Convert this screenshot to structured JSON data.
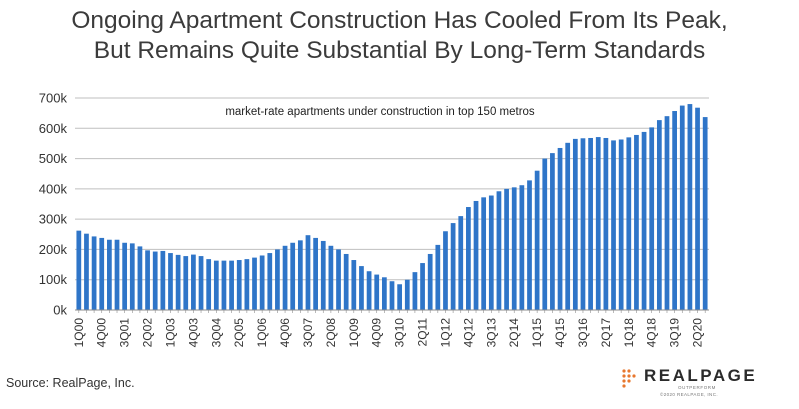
{
  "title": {
    "line1": "Ongoing Apartment Construction Has Cooled From Its Peak,",
    "line2": "But Remains Quite Substantial By Long-Term Standards"
  },
  "source": "Source: RealPage, Inc.",
  "logo": {
    "name": "REALPAGE",
    "tagline": "OUTPERFORM",
    "copyright": "©2020 REALPAGE, INC."
  },
  "colors": {
    "bar": "#2f75c8",
    "grid": "#bfbfbf",
    "text": "#333333"
  },
  "chart_data": {
    "type": "bar",
    "annotation": "market-rate apartments under construction in top 150 metros",
    "ylim": [
      0,
      700000
    ],
    "yticks": [
      {
        "value": 0,
        "label": "0k"
      },
      {
        "value": 100000,
        "label": "100k"
      },
      {
        "value": 200000,
        "label": "200k"
      },
      {
        "value": 300000,
        "label": "300k"
      },
      {
        "value": 400000,
        "label": "400k"
      },
      {
        "value": 500000,
        "label": "500k"
      },
      {
        "value": 600000,
        "label": "600k"
      },
      {
        "value": 700000,
        "label": "700k"
      }
    ],
    "grid": "horizontal",
    "categories": [
      "1Q00",
      "2Q00",
      "3Q00",
      "4Q00",
      "1Q01",
      "2Q01",
      "3Q01",
      "4Q01",
      "1Q02",
      "2Q02",
      "3Q02",
      "4Q02",
      "1Q03",
      "2Q03",
      "3Q03",
      "4Q03",
      "1Q04",
      "2Q04",
      "3Q04",
      "4Q04",
      "1Q05",
      "2Q05",
      "3Q05",
      "4Q05",
      "1Q06",
      "2Q06",
      "3Q06",
      "4Q06",
      "1Q07",
      "2Q07",
      "3Q07",
      "4Q07",
      "1Q08",
      "2Q08",
      "3Q08",
      "4Q08",
      "1Q09",
      "2Q09",
      "3Q09",
      "4Q09",
      "1Q10",
      "2Q10",
      "3Q10",
      "4Q10",
      "1Q11",
      "2Q11",
      "3Q11",
      "4Q11",
      "1Q12",
      "2Q12",
      "3Q12",
      "4Q12",
      "1Q13",
      "2Q13",
      "3Q13",
      "4Q13",
      "1Q14",
      "2Q14",
      "3Q14",
      "4Q14",
      "1Q15",
      "2Q15",
      "3Q15",
      "4Q15",
      "1Q16",
      "2Q16",
      "3Q16",
      "4Q16",
      "1Q17",
      "2Q17",
      "3Q17",
      "4Q17",
      "1Q18",
      "2Q18",
      "3Q18",
      "4Q18",
      "1Q19",
      "2Q19",
      "3Q19",
      "4Q19",
      "1Q20",
      "2Q20",
      "3Q20"
    ],
    "tick_labels_shown": [
      "1Q00",
      "4Q00",
      "3Q01",
      "2Q02",
      "1Q03",
      "4Q03",
      "3Q04",
      "2Q05",
      "1Q06",
      "4Q06",
      "3Q07",
      "2Q08",
      "1Q09",
      "4Q09",
      "3Q10",
      "2Q11",
      "1Q12",
      "4Q12",
      "3Q13",
      "2Q14",
      "1Q15",
      "4Q15",
      "3Q16",
      "2Q17",
      "1Q18",
      "4Q18",
      "3Q19",
      "2Q20"
    ],
    "values": [
      262000,
      252000,
      243000,
      238000,
      232000,
      232000,
      222000,
      220000,
      210000,
      197000,
      193000,
      195000,
      188000,
      182000,
      178000,
      183000,
      178000,
      168000,
      163000,
      163000,
      163000,
      165000,
      168000,
      173000,
      180000,
      188000,
      200000,
      212000,
      222000,
      230000,
      247000,
      238000,
      228000,
      212000,
      200000,
      185000,
      165000,
      145000,
      128000,
      117000,
      108000,
      95000,
      85000,
      100000,
      125000,
      155000,
      185000,
      215000,
      260000,
      287000,
      310000,
      340000,
      360000,
      372000,
      378000,
      392000,
      400000,
      405000,
      412000,
      428000,
      460000,
      500000,
      518000,
      535000,
      552000,
      565000,
      567000,
      568000,
      571000,
      568000,
      560000,
      563000,
      570000,
      578000,
      588000,
      603000,
      627000,
      640000,
      657000,
      675000,
      680000,
      668000,
      637000
    ]
  }
}
